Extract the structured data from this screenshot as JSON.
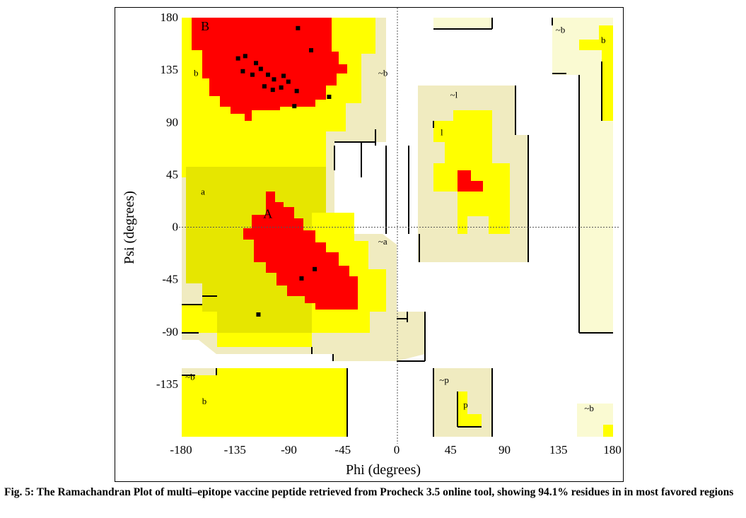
{
  "caption": "Fig. 5: The Ramachandran Plot of multi–epitope vaccine peptide retrieved from Procheck 3.5 online tool, showing 94.1% residues in in most favored regions",
  "colors": {
    "most_favoured": "#ff0000",
    "additional_allowed": "#ffff00",
    "additional_allowed_dark": "#e6e600",
    "generously_allowed": "#f0ebc0",
    "generously_allowed_light": "#fafad2",
    "disallowed": "#ffffff",
    "points": "#000000"
  },
  "chart_data": {
    "type": "scatter",
    "title": "",
    "xlabel": "Phi (degrees)",
    "ylabel": "Psi (degrees)",
    "xlim": [
      -180,
      180
    ],
    "ylim": [
      -180,
      180
    ],
    "xticks": [
      -180,
      -135,
      -90,
      -45,
      0,
      45,
      90,
      135,
      180
    ],
    "yticks": [
      180,
      135,
      90,
      45,
      0,
      -45,
      -90,
      -135
    ],
    "xtick_labels": [
      "-180",
      "-135",
      "-90",
      "-45",
      "0",
      "45",
      "90",
      "135",
      "180"
    ],
    "ytick_labels": [
      "180",
      "135",
      "90",
      "45",
      "0",
      "-45",
      "-90",
      "-135"
    ],
    "reference_lines": [
      {
        "axis": "x",
        "value": 0,
        "style": "dotted"
      },
      {
        "axis": "y",
        "value": 0,
        "style": "dotted"
      }
    ],
    "region_labels": [
      {
        "text": "B",
        "phi": -164,
        "psi": 169
      },
      {
        "text": "b",
        "phi": -170,
        "psi": 130
      },
      {
        "text": "~b",
        "phi": -16,
        "psi": 130
      },
      {
        "text": "~l",
        "phi": 44,
        "psi": 111
      },
      {
        "text": "l",
        "phi": 36,
        "psi": 79
      },
      {
        "text": "a",
        "phi": -164,
        "psi": 28
      },
      {
        "text": "A",
        "phi": -112,
        "psi": 8
      },
      {
        "text": "~a",
        "phi": -16,
        "psi": -15
      },
      {
        "text": "~b",
        "phi": 132,
        "psi": 167
      },
      {
        "text": "b",
        "phi": 170,
        "psi": 158
      },
      {
        "text": "~b",
        "phi": -177,
        "psi": -131
      },
      {
        "text": "b",
        "phi": -163,
        "psi": -152
      },
      {
        "text": "~p",
        "phi": 35,
        "psi": -134
      },
      {
        "text": "p",
        "phi": 55,
        "psi": -155
      },
      {
        "text": "~b",
        "phi": 156,
        "psi": -158
      }
    ],
    "series": [
      {
        "points": [
          {
            "phi": -83,
            "psi": 171
          },
          {
            "phi": -72,
            "psi": 152
          },
          {
            "phi": -133,
            "psi": 145
          },
          {
            "phi": -127,
            "psi": 147
          },
          {
            "phi": -118,
            "psi": 141
          },
          {
            "phi": -129,
            "psi": 134
          },
          {
            "phi": -121,
            "psi": 131
          },
          {
            "phi": -114,
            "psi": 136
          },
          {
            "phi": -108,
            "psi": 131
          },
          {
            "phi": -103,
            "psi": 127
          },
          {
            "phi": -95,
            "psi": 130
          },
          {
            "phi": -91,
            "psi": 125
          },
          {
            "phi": -111,
            "psi": 121
          },
          {
            "phi": -104,
            "psi": 118
          },
          {
            "phi": -97,
            "psi": 120
          },
          {
            "phi": -84,
            "psi": 117
          },
          {
            "phi": -86,
            "psi": 104
          },
          {
            "phi": -57,
            "psi": 112
          },
          {
            "phi": -69,
            "psi": -36
          },
          {
            "phi": -80,
            "psi": -44
          },
          {
            "phi": -116,
            "psi": -75
          }
        ]
      }
    ]
  }
}
